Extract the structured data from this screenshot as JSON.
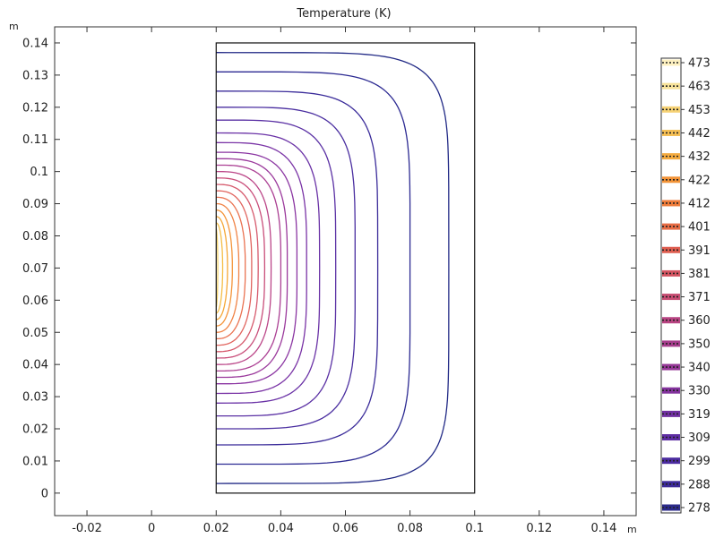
{
  "chart_data": {
    "type": "contour",
    "title": "Temperature (K)",
    "x_unit": "m",
    "y_unit": "m",
    "xlim": [
      -0.03,
      0.15
    ],
    "ylim": [
      -0.007,
      0.145
    ],
    "x_ticks": [
      -0.02,
      0,
      0.02,
      0.04,
      0.06,
      0.08,
      0.1,
      0.12,
      0.14
    ],
    "x_tick_labels": [
      "-0.02",
      "0",
      "0.02",
      "0.04",
      "0.06",
      "0.08",
      "0.1",
      "0.12",
      "0.14"
    ],
    "y_ticks": [
      0,
      0.01,
      0.02,
      0.03,
      0.04,
      0.05,
      0.06,
      0.07,
      0.08,
      0.09,
      0.1,
      0.11,
      0.12,
      0.13,
      0.14
    ],
    "y_tick_labels": [
      "0",
      "0.01",
      "0.02",
      "0.03",
      "0.04",
      "0.05",
      "0.06",
      "0.07",
      "0.08",
      "0.09",
      "0.1",
      "0.11",
      "0.12",
      "0.13",
      "0.14"
    ],
    "domain": {
      "x": [
        0.02,
        0.1
      ],
      "y": [
        0,
        0.14
      ]
    },
    "heat_center": {
      "x": 0.02,
      "y": 0.07
    },
    "contour_levels_K": [
      278,
      288,
      299,
      309,
      319,
      330,
      340,
      350,
      360,
      371,
      381,
      391,
      401,
      412,
      422,
      432,
      442,
      453,
      463,
      473
    ],
    "contour_extents": [
      {
        "level": 278,
        "x_max": 0.092,
        "y_min": 0.003,
        "y_max": 0.137,
        "color": "#222a86"
      },
      {
        "level": 288,
        "x_max": 0.08,
        "y_min": 0.009,
        "y_max": 0.131,
        "color": "#2c2a92"
      },
      {
        "level": 299,
        "x_max": 0.07,
        "y_min": 0.015,
        "y_max": 0.125,
        "color": "#3b2c9a"
      },
      {
        "level": 309,
        "x_max": 0.063,
        "y_min": 0.02,
        "y_max": 0.12,
        "color": "#4a2ea0"
      },
      {
        "level": 319,
        "x_max": 0.057,
        "y_min": 0.024,
        "y_max": 0.116,
        "color": "#5a30a4"
      },
      {
        "level": 330,
        "x_max": 0.052,
        "y_min": 0.028,
        "y_max": 0.112,
        "color": "#6a32a6"
      },
      {
        "level": 340,
        "x_max": 0.048,
        "y_min": 0.031,
        "y_max": 0.109,
        "color": "#7a34a6"
      },
      {
        "level": 350,
        "x_max": 0.045,
        "y_min": 0.034,
        "y_max": 0.106,
        "color": "#8b36a2"
      },
      {
        "level": 360,
        "x_max": 0.042,
        "y_min": 0.036,
        "y_max": 0.104,
        "color": "#9b3a9c"
      },
      {
        "level": 371,
        "x_max": 0.04,
        "y_min": 0.038,
        "y_max": 0.102,
        "color": "#ab3f93"
      },
      {
        "level": 381,
        "x_max": 0.037,
        "y_min": 0.04,
        "y_max": 0.1,
        "color": "#bb4688"
      },
      {
        "level": 391,
        "x_max": 0.035,
        "y_min": 0.042,
        "y_max": 0.098,
        "color": "#c94e7a"
      },
      {
        "level": 401,
        "x_max": 0.033,
        "y_min": 0.044,
        "y_max": 0.096,
        "color": "#d6596c"
      },
      {
        "level": 412,
        "x_max": 0.031,
        "y_min": 0.046,
        "y_max": 0.094,
        "color": "#e1655f"
      },
      {
        "level": 422,
        "x_max": 0.029,
        "y_min": 0.048,
        "y_max": 0.092,
        "color": "#ea7352"
      },
      {
        "level": 432,
        "x_max": 0.027,
        "y_min": 0.05,
        "y_max": 0.09,
        "color": "#f08346"
      },
      {
        "level": 442,
        "x_max": 0.025,
        "y_min": 0.052,
        "y_max": 0.088,
        "color": "#f4953b"
      },
      {
        "level": 453,
        "x_max": 0.0235,
        "y_min": 0.054,
        "y_max": 0.086,
        "color": "#f5a838"
      },
      {
        "level": 463,
        "x_max": 0.022,
        "y_min": 0.056,
        "y_max": 0.084,
        "color": "#f4bd45"
      },
      {
        "level": 473,
        "x_max": 0.0205,
        "y_min": 0.058,
        "y_max": 0.082,
        "color": "#f4d36a"
      }
    ],
    "legend": {
      "placement": "right",
      "labels": [
        "473",
        "463",
        "453",
        "442",
        "432",
        "422",
        "412",
        "401",
        "391",
        "381",
        "371",
        "360",
        "350",
        "340",
        "330",
        "319",
        "309",
        "299",
        "288",
        "278"
      ],
      "colors": [
        "#fdf0c0",
        "#f8e39a",
        "#f6d275",
        "#f5bf55",
        "#f4ab40",
        "#f29338",
        "#ee7c3a",
        "#e76c44",
        "#df5e50",
        "#d45562",
        "#c74c72",
        "#b84482",
        "#a73d8d",
        "#953796",
        "#83339d",
        "#7030a1",
        "#5e2ea3",
        "#4c2ca1",
        "#3c2a99",
        "#2b2a8a"
      ]
    },
    "grid": false
  }
}
